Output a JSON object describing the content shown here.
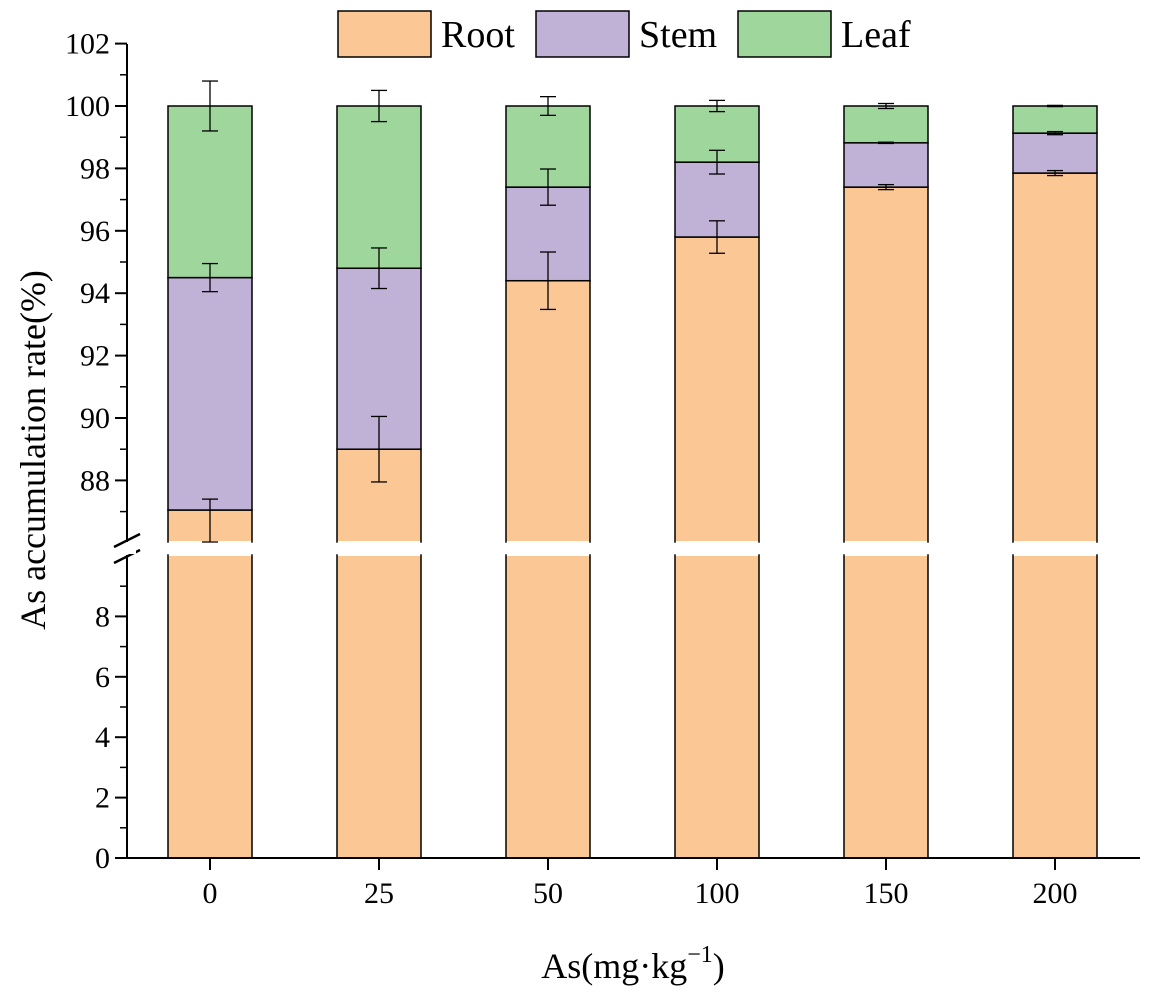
{
  "chart_data": {
    "type": "bar",
    "stacked": true,
    "categories": [
      "0",
      "25",
      "50",
      "100",
      "150",
      "200"
    ],
    "series": [
      {
        "name": "Root",
        "color": "#fac795",
        "values": [
          87.05,
          89.0,
          94.4,
          95.8,
          97.4,
          97.85
        ],
        "errors": [
          0.35,
          1.05,
          0.92,
          0.52,
          0.08,
          0.08
        ]
      },
      {
        "name": "Stem",
        "color": "#c0b1d6",
        "values": [
          7.45,
          5.8,
          3.0,
          2.4,
          1.42,
          1.28
        ],
        "errors": [
          0.45,
          0.65,
          0.58,
          0.38,
          0.02,
          0.05
        ]
      },
      {
        "name": "Leaf",
        "color": "#9ed69c",
        "values": [
          5.5,
          5.2,
          2.6,
          1.8,
          1.18,
          0.87
        ],
        "errors": [
          0.8,
          0.5,
          0.3,
          0.18,
          0.08,
          0.02
        ]
      }
    ],
    "xlabel_main": "As(mg·kg",
    "xlabel_sup": "−1",
    "xlabel_close": ")",
    "ylabel": "As accumulation rate(%)",
    "y_break": {
      "lower_range": [
        0,
        10
      ],
      "upper_range": [
        86.8,
        102
      ]
    },
    "yticks_lower": [
      "0",
      "2",
      "4",
      "6",
      "8"
    ],
    "yticks_upper": [
      "88",
      "90",
      "92",
      "94",
      "96",
      "98",
      "100",
      "102"
    ],
    "legend_position": "top-center"
  }
}
